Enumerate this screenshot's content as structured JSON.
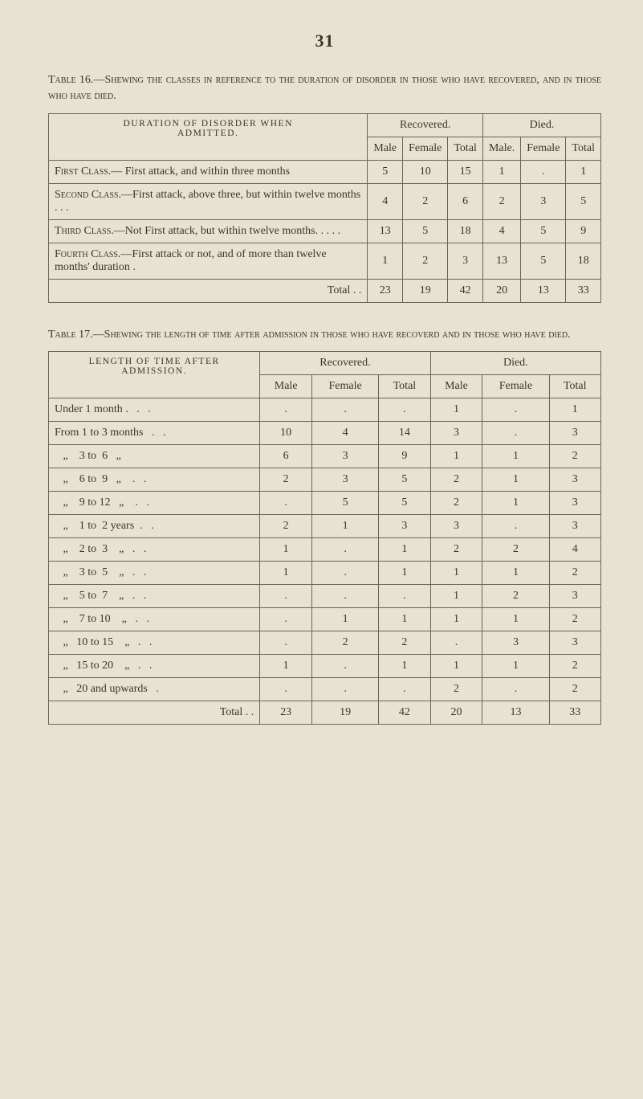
{
  "page_number": "31",
  "table16": {
    "caption_lead": "Table 16.",
    "caption_rest": "—Shewing the classes in reference to the duration of disorder in those who have recovered, and in those who have died.",
    "row_header_top": "DURATION OF DISORDER WHEN",
    "row_header_sub": "ADMITTED.",
    "group_recovered": "Recovered.",
    "group_died": "Died.",
    "sub_male": "Male",
    "sub_female": "Female",
    "sub_total": "Total",
    "sub_male2": "Male.",
    "sub_female2": "Female",
    "sub_total2": "Total",
    "rows": [
      {
        "lead": "First Class.",
        "rest": "— First attack, and within three months",
        "cells": [
          "5",
          "10",
          "15",
          "1",
          ".",
          "1"
        ]
      },
      {
        "lead": "Second Class.",
        "rest": "—First attack, above three, but within twelve months .   .   .",
        "cells": [
          "4",
          "2",
          "6",
          "2",
          "3",
          "5"
        ]
      },
      {
        "lead": "Third Class.",
        "rest": "—Not First at­tack, but within twelve months.   .   .   .   .",
        "cells": [
          "13",
          "5",
          "18",
          "4",
          "5",
          "9"
        ]
      },
      {
        "lead": "Fourth Class.",
        "rest": "—First attack or not, and of more than twelve months' duration  .",
        "cells": [
          "1",
          "2",
          "3",
          "13",
          "5",
          "18"
        ]
      }
    ],
    "total_label": "Total .   .",
    "total_cells": [
      "23",
      "19",
      "42",
      "20",
      "13",
      "33"
    ]
  },
  "table17": {
    "caption_lead": "Table 17.",
    "caption_rest": "—Shewing the length of time after admission in those who have recoverd and in those who have died.",
    "row_header_top": "LENGTH OF TIME AFTER",
    "row_header_sub": "ADMISSION.",
    "group_recovered": "Recovered.",
    "group_died": "Died.",
    "sub_male": "Male",
    "sub_female": "Female",
    "sub_total": "Total",
    "sub_male2": "Male",
    "sub_female2": "Female",
    "sub_total2": "Total",
    "rows": [
      {
        "label": "Under 1 month .   .   .",
        "cells": [
          ".",
          ".",
          ".",
          "1",
          ".",
          "1"
        ]
      },
      {
        "label": "From 1 to 3 months   .   .",
        "cells": [
          "10",
          "4",
          "14",
          "3",
          ".",
          "3"
        ]
      },
      {
        "label": "   „    3 to  6   „",
        "cells": [
          "6",
          "3",
          "9",
          "1",
          "1",
          "2"
        ]
      },
      {
        "label": "   „    6 to  9   „    .   .",
        "cells": [
          "2",
          "3",
          "5",
          "2",
          "1",
          "3"
        ]
      },
      {
        "label": "   „    9 to 12   „    .   .",
        "cells": [
          ".",
          "5",
          "5",
          "2",
          "1",
          "3"
        ]
      },
      {
        "label": "   „    1 to  2 years  .   .",
        "cells": [
          "2",
          "1",
          "3",
          "3",
          ".",
          "3"
        ]
      },
      {
        "label": "   „    2 to  3    „   .   .",
        "cells": [
          "1",
          ".",
          "1",
          "2",
          "2",
          "4"
        ]
      },
      {
        "label": "   „    3 to  5    „   .   .",
        "cells": [
          "1",
          ".",
          "1",
          "1",
          "1",
          "2"
        ]
      },
      {
        "label": "   „    5 to  7    „   .   .",
        "cells": [
          ".",
          ".",
          ".",
          "1",
          "2",
          "3"
        ]
      },
      {
        "label": "   „    7 to 10    „   .   .",
        "cells": [
          ".",
          "1",
          "1",
          "1",
          "1",
          "2"
        ]
      },
      {
        "label": "   „   10 to 15    „   .   .",
        "cells": [
          ".",
          "2",
          "2",
          ".",
          "3",
          "3"
        ]
      },
      {
        "label": "   „   15 to 20    „   .   .",
        "cells": [
          "1",
          ".",
          "1",
          "1",
          "1",
          "2"
        ]
      },
      {
        "label": "   „   20 and upwards   .",
        "cells": [
          ".",
          ".",
          ".",
          "2",
          ".",
          "2"
        ]
      }
    ],
    "total_label": "Total .   .",
    "total_cells": [
      "23",
      "19",
      "42",
      "20",
      "13",
      "33"
    ]
  }
}
